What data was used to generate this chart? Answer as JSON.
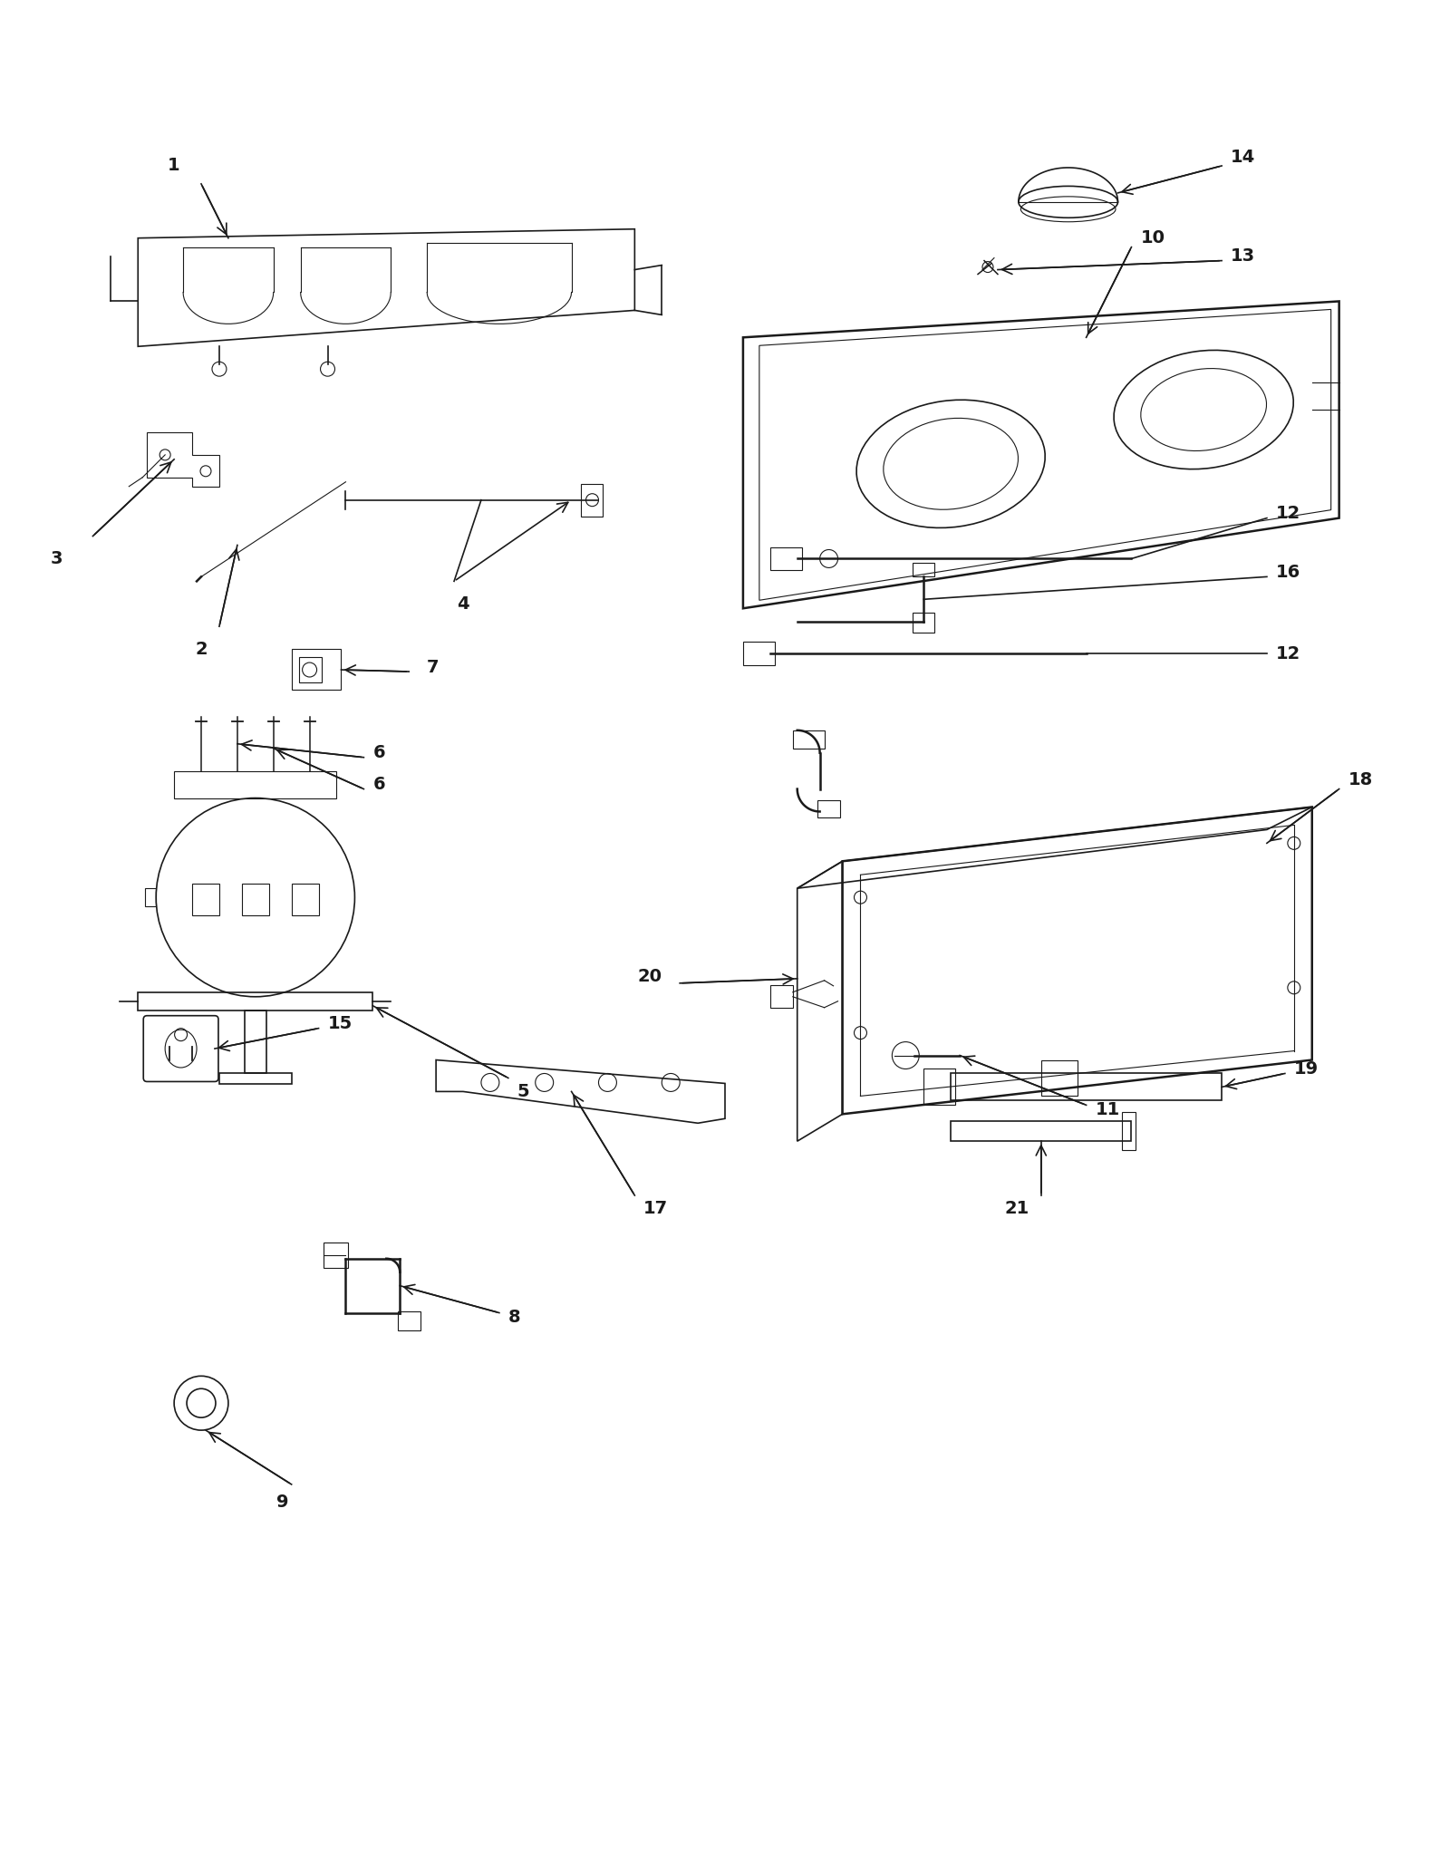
{
  "background_color": "#ffffff",
  "line_color": "#1a1a1a",
  "fig_width": 16.0,
  "fig_height": 20.7,
  "label_fontsize": 14,
  "label_fontweight": "bold"
}
